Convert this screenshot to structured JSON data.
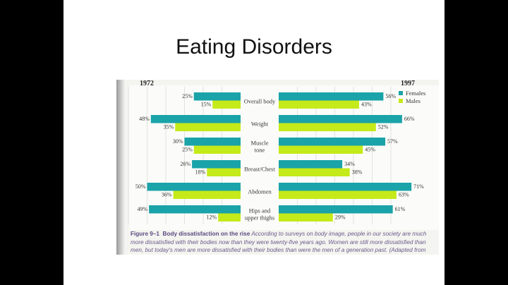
{
  "slide": {
    "title": "Eating Disorders"
  },
  "chart_data": {
    "type": "bar",
    "orientation": "horizontal-back-to-back",
    "panels": [
      "1972",
      "1997"
    ],
    "categories": [
      "Overall body",
      "Weight",
      "Muscle tone",
      "Breast/Chest",
      "Abdomen",
      "Hips and upper thighs"
    ],
    "category_lines": [
      [
        "Overall body"
      ],
      [
        "Weight"
      ],
      [
        "Muscle",
        "tone"
      ],
      [
        "Breast/Chest"
      ],
      [
        "Abdomen"
      ],
      [
        "Hips and",
        "upper thighs"
      ]
    ],
    "series": [
      {
        "name": "Females",
        "color": "#1aa3a8",
        "1972": [
          25,
          48,
          30,
          26,
          50,
          49
        ],
        "1997": [
          56,
          66,
          57,
          34,
          71,
          61
        ]
      },
      {
        "name": "Males",
        "color": "#c5ea1a",
        "1972": [
          15,
          35,
          25,
          18,
          36,
          12
        ],
        "1997": [
          43,
          52,
          45,
          38,
          63,
          29
        ]
      }
    ],
    "unit": "%",
    "grid": true,
    "legend": "top-right"
  },
  "caption": {
    "label": "Figure 9–1",
    "heading": "Body dissatisfaction on the rise",
    "text": "According to surveys on body image, people in our society are much more dissatisfied with their bodies now than they were twenty-five years ago. Women are still more dissatisfied than men, but today's men are more dissatisfied with their bodies than were the men of a generation past. (Adapted from"
  }
}
